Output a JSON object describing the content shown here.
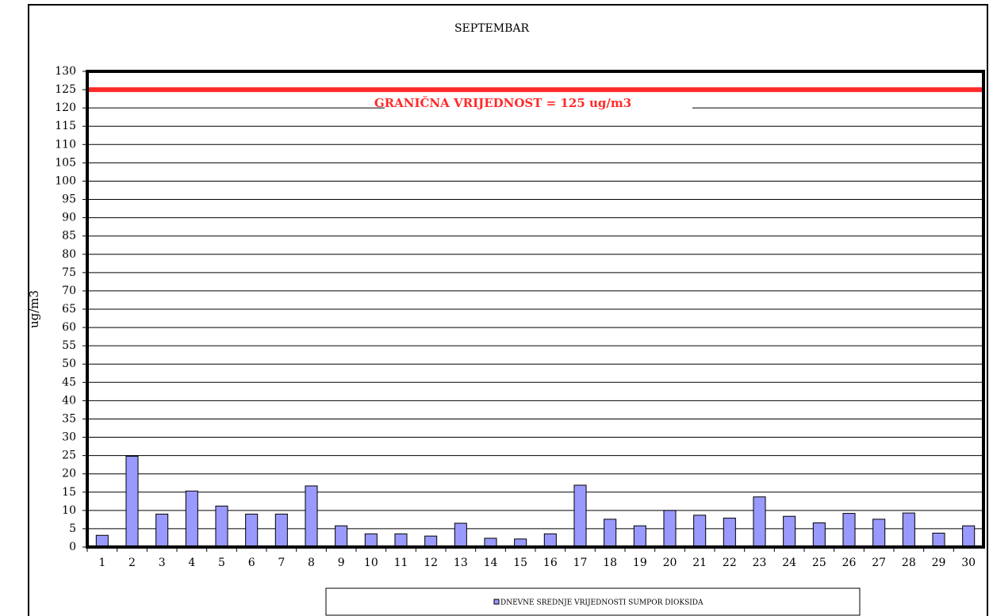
{
  "chart_data": {
    "type": "bar",
    "title": "SEPTEMBAR",
    "y_label": "ug/m3",
    "categories": [
      "1",
      "2",
      "3",
      "4",
      "5",
      "6",
      "7",
      "8",
      "9",
      "10",
      "11",
      "12",
      "13",
      "14",
      "15",
      "16",
      "17",
      "18",
      "19",
      "20",
      "21",
      "22",
      "23",
      "24",
      "25",
      "26",
      "27",
      "28",
      "29",
      "30"
    ],
    "series": [
      {
        "name": "DNEVNE SREDNJE VRIJEDNOSTI SUMPOR DIOKSIDA",
        "color": "#9999ff",
        "values": [
          3.2,
          24.8,
          9,
          15.3,
          11.2,
          9,
          9,
          16.7,
          5.8,
          3.6,
          3.6,
          3,
          6.5,
          2.4,
          2.2,
          3.6,
          16.9,
          7.6,
          5.8,
          10,
          8.7,
          7.9,
          13.7,
          8.4,
          6.6,
          9.2,
          7.6,
          9.3,
          3.8,
          5.8
        ]
      }
    ],
    "ylim": [
      0,
      130
    ],
    "yticks": [
      0,
      5,
      10,
      15,
      20,
      25,
      30,
      35,
      40,
      45,
      50,
      55,
      60,
      65,
      70,
      75,
      80,
      85,
      90,
      95,
      100,
      105,
      110,
      115,
      120,
      125,
      130
    ],
    "grid": true,
    "limit_line": {
      "value": 125,
      "label": "GRANIČNA VRIJEDNOST = 125 ug/m3",
      "color": "#ff2a2a"
    }
  }
}
